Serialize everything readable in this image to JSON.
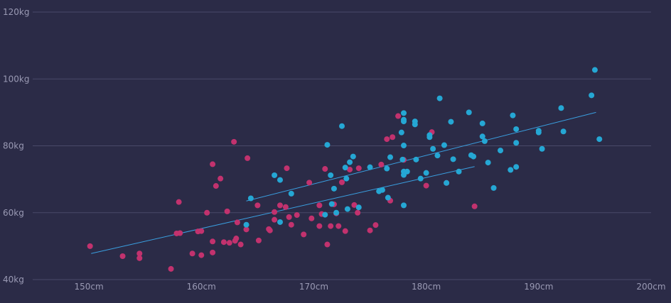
{
  "colors": {
    "background": "#2b2b47",
    "grid": "#4a4a68",
    "tick_text": "#9a9ab4",
    "female": "#c2326e",
    "male": "#25a7d4",
    "trend_female": "#3a9fe0",
    "trend_male": "#3a9fe0"
  },
  "chart_data": {
    "type": "scatter",
    "title": "",
    "xlabel": "",
    "ylabel": "",
    "xlim": [
      145,
      200
    ],
    "ylim": [
      40,
      120
    ],
    "x_ticks": [
      {
        "value": 150,
        "label": "150cm"
      },
      {
        "value": 160,
        "label": "160cm"
      },
      {
        "value": 170,
        "label": "170cm"
      },
      {
        "value": 180,
        "label": "180cm"
      },
      {
        "value": 190,
        "label": "190cm"
      },
      {
        "value": 200,
        "label": "200cm"
      }
    ],
    "y_ticks": [
      {
        "value": 40,
        "label": "40kg"
      },
      {
        "value": 60,
        "label": "60kg"
      },
      {
        "value": 80,
        "label": "80kg"
      },
      {
        "value": 100,
        "label": "100kg"
      },
      {
        "value": 120,
        "label": "120kg"
      }
    ],
    "grid": "horizontal",
    "legend": "none",
    "series": [
      {
        "color": "#c2326e",
        "points": [
          [
            150.1,
            50.0
          ],
          [
            153.0,
            47.0
          ],
          [
            154.5,
            47.8
          ],
          [
            154.5,
            46.4
          ],
          [
            157.3,
            43.2
          ],
          [
            157.8,
            53.8
          ],
          [
            158.0,
            63.2
          ],
          [
            158.1,
            53.9
          ],
          [
            159.2,
            47.8
          ],
          [
            159.7,
            54.4
          ],
          [
            160.0,
            54.5
          ],
          [
            160.0,
            47.3
          ],
          [
            160.5,
            60.0
          ],
          [
            161.0,
            51.4
          ],
          [
            161.0,
            74.5
          ],
          [
            161.0,
            48.1
          ],
          [
            161.3,
            68.0
          ],
          [
            161.7,
            70.2
          ],
          [
            162.0,
            51.2
          ],
          [
            162.3,
            60.4
          ],
          [
            162.5,
            51.0
          ],
          [
            162.9,
            81.2
          ],
          [
            163.0,
            51.6
          ],
          [
            163.1,
            52.3
          ],
          [
            163.2,
            57.1
          ],
          [
            163.5,
            50.5
          ],
          [
            164.0,
            55.0
          ],
          [
            164.1,
            76.3
          ],
          [
            165.0,
            62.2
          ],
          [
            165.1,
            51.7
          ],
          [
            166.0,
            55.1
          ],
          [
            166.1,
            54.7
          ],
          [
            166.5,
            60.2
          ],
          [
            166.5,
            57.9
          ],
          [
            167.0,
            62.2
          ],
          [
            167.5,
            61.7
          ],
          [
            167.6,
            73.3
          ],
          [
            167.8,
            58.7
          ],
          [
            168.0,
            56.4
          ],
          [
            168.5,
            59.3
          ],
          [
            169.1,
            53.5
          ],
          [
            169.6,
            69.0
          ],
          [
            169.8,
            58.3
          ],
          [
            170.5,
            56.0
          ],
          [
            170.5,
            62.2
          ],
          [
            170.7,
            59.6
          ],
          [
            171.0,
            73.1
          ],
          [
            171.2,
            50.5
          ],
          [
            171.5,
            56.0
          ],
          [
            171.8,
            62.5
          ],
          [
            172.0,
            59.8
          ],
          [
            172.2,
            56.0
          ],
          [
            172.5,
            69.1
          ],
          [
            172.8,
            54.5
          ],
          [
            173.2,
            72.9
          ],
          [
            173.6,
            62.3
          ],
          [
            173.9,
            60.0
          ],
          [
            174.0,
            73.3
          ],
          [
            175.0,
            54.7
          ],
          [
            175.5,
            56.3
          ],
          [
            176.0,
            74.4
          ],
          [
            176.5,
            82.0
          ],
          [
            176.8,
            63.6
          ],
          [
            177.0,
            82.6
          ],
          [
            177.5,
            88.9
          ],
          [
            178.0,
            75.8
          ],
          [
            180.0,
            68.1
          ],
          [
            180.5,
            84.1
          ],
          [
            181.8,
            68.9
          ],
          [
            184.3,
            61.9
          ]
        ]
      },
      {
        "color": "#25a7d4",
        "points": [
          [
            164.0,
            56.4
          ],
          [
            164.4,
            64.3
          ],
          [
            166.5,
            71.2
          ],
          [
            167.0,
            69.8
          ],
          [
            167.0,
            57.2
          ],
          [
            168.0,
            65.7
          ],
          [
            171.0,
            59.4
          ],
          [
            171.2,
            80.3
          ],
          [
            171.5,
            71.2
          ],
          [
            171.6,
            62.6
          ],
          [
            171.8,
            67.2
          ],
          [
            172.0,
            60.0
          ],
          [
            172.5,
            85.9
          ],
          [
            172.8,
            73.5
          ],
          [
            172.9,
            70.2
          ],
          [
            173.0,
            61.1
          ],
          [
            173.2,
            75.1
          ],
          [
            173.5,
            76.8
          ],
          [
            174.0,
            61.6
          ],
          [
            175.0,
            73.6
          ],
          [
            175.8,
            66.4
          ],
          [
            176.1,
            66.8
          ],
          [
            176.5,
            73.2
          ],
          [
            176.6,
            64.5
          ],
          [
            176.8,
            76.6
          ],
          [
            177.8,
            84.0
          ],
          [
            177.9,
            75.9
          ],
          [
            178.0,
            89.8
          ],
          [
            178.0,
            87.8
          ],
          [
            178.0,
            87.3
          ],
          [
            178.0,
            80.1
          ],
          [
            178.0,
            72.3
          ],
          [
            178.0,
            71.3
          ],
          [
            178.0,
            62.2
          ],
          [
            178.3,
            72.3
          ],
          [
            179.0,
            87.3
          ],
          [
            179.0,
            86.4
          ],
          [
            179.1,
            75.9
          ],
          [
            179.5,
            70.2
          ],
          [
            180.0,
            71.9
          ],
          [
            180.3,
            83.2
          ],
          [
            180.3,
            82.6
          ],
          [
            180.6,
            79.1
          ],
          [
            181.0,
            77.1
          ],
          [
            181.2,
            94.2
          ],
          [
            181.6,
            80.2
          ],
          [
            181.8,
            68.9
          ],
          [
            182.2,
            87.2
          ],
          [
            182.4,
            76.0
          ],
          [
            182.9,
            72.3
          ],
          [
            183.8,
            90.0
          ],
          [
            184.0,
            77.2
          ],
          [
            184.2,
            76.8
          ],
          [
            185.0,
            86.7
          ],
          [
            185.0,
            82.8
          ],
          [
            185.2,
            81.4
          ],
          [
            185.5,
            75.0
          ],
          [
            186.0,
            67.4
          ],
          [
            186.6,
            78.6
          ],
          [
            187.5,
            72.8
          ],
          [
            187.7,
            89.1
          ],
          [
            188.0,
            85.0
          ],
          [
            188.0,
            80.9
          ],
          [
            188.0,
            73.7
          ],
          [
            190.0,
            84.5
          ],
          [
            190.0,
            84.0
          ],
          [
            190.3,
            79.1
          ],
          [
            192.0,
            91.3
          ],
          [
            192.2,
            84.3
          ],
          [
            194.7,
            95.1
          ],
          [
            195.0,
            102.7
          ],
          [
            195.4,
            82.0
          ]
        ]
      }
    ],
    "trend_lines": [
      {
        "color": "#3a9fe0",
        "x": [
          150.2,
          184.3
        ],
        "y": [
          47.8,
          73.8
        ]
      },
      {
        "color": "#3a9fe0",
        "x": [
          164.0,
          195.1
        ],
        "y": [
          63.5,
          90.0
        ]
      }
    ]
  }
}
